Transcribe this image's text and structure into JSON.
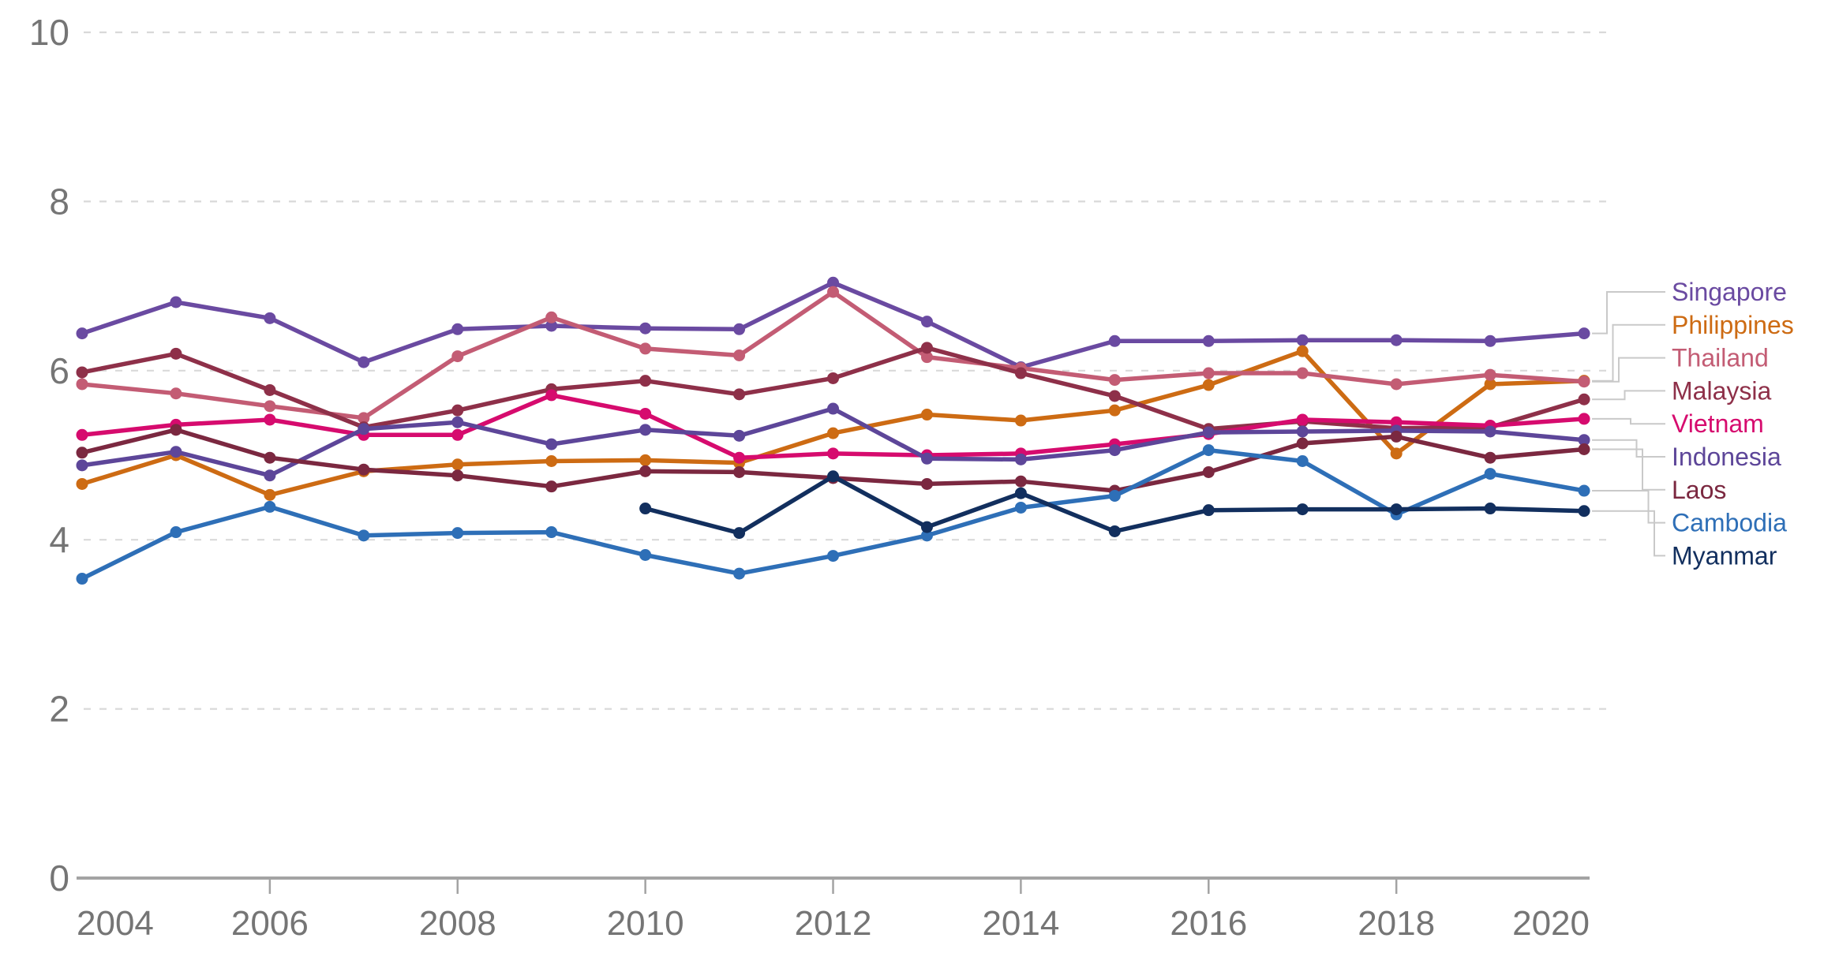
{
  "chart_data": {
    "type": "line",
    "title": "",
    "x": [
      2004,
      2005,
      2006,
      2007,
      2008,
      2009,
      2010,
      2011,
      2012,
      2013,
      2014,
      2015,
      2016,
      2017,
      2018,
      2019,
      2020
    ],
    "x_tick_labels": [
      "2004",
      "2006",
      "2008",
      "2010",
      "2012",
      "2014",
      "2016",
      "2018",
      "2020"
    ],
    "y_ticks": [
      0,
      2,
      4,
      6,
      8,
      10
    ],
    "ylim": [
      0,
      10
    ],
    "xlabel": "",
    "ylabel": "",
    "grid": "horizontal-dashed",
    "legend_position": "right-direct-labels",
    "series": [
      {
        "name": "Singapore",
        "color": "#6a4aa1",
        "values": [
          6.44,
          6.81,
          6.62,
          6.1,
          6.49,
          6.53,
          6.5,
          6.49,
          7.04,
          6.58,
          6.04,
          6.35,
          6.35,
          6.36,
          6.36,
          6.35,
          6.44
        ]
      },
      {
        "name": "Philippines",
        "color": "#cd6b13",
        "values": [
          4.66,
          5.0,
          4.53,
          4.81,
          4.89,
          4.93,
          4.94,
          4.91,
          5.26,
          5.48,
          5.41,
          5.53,
          5.83,
          6.23,
          5.02,
          5.84,
          5.88
        ]
      },
      {
        "name": "Thailand",
        "color": "#c35c74",
        "values": [
          5.84,
          5.73,
          5.58,
          5.44,
          6.17,
          6.63,
          6.26,
          6.18,
          6.93,
          6.16,
          6.03,
          5.89,
          5.97,
          5.97,
          5.84,
          5.95,
          5.87
        ]
      },
      {
        "name": "Malaysia",
        "color": "#8e3049",
        "values": [
          5.98,
          6.2,
          5.77,
          5.33,
          5.53,
          5.78,
          5.88,
          5.72,
          5.91,
          6.27,
          5.97,
          5.7,
          5.31,
          5.4,
          5.32,
          5.33,
          5.66
        ]
      },
      {
        "name": "Vietnam",
        "color": "#d60b6e",
        "values": [
          5.24,
          5.36,
          5.42,
          5.24,
          5.24,
          5.71,
          5.49,
          4.97,
          5.02,
          5.0,
          5.02,
          5.13,
          5.25,
          5.42,
          5.39,
          5.35,
          5.43
        ]
      },
      {
        "name": "Indonesia",
        "color": "#5d4699",
        "values": [
          4.88,
          5.04,
          4.76,
          5.31,
          5.39,
          5.13,
          5.3,
          5.23,
          5.55,
          4.96,
          4.95,
          5.06,
          5.27,
          5.28,
          5.29,
          5.28,
          5.18
        ]
      },
      {
        "name": "Laos",
        "color": "#7b2840",
        "values": [
          5.03,
          5.3,
          4.97,
          4.83,
          4.76,
          4.63,
          4.81,
          4.8,
          4.73,
          4.66,
          4.69,
          4.58,
          4.8,
          5.14,
          5.22,
          4.97,
          5.07
        ]
      },
      {
        "name": "Cambodia",
        "color": "#2e6fb7",
        "values": [
          3.54,
          4.09,
          4.39,
          4.05,
          4.08,
          4.09,
          3.82,
          3.6,
          3.81,
          4.05,
          4.38,
          4.52,
          5.06,
          4.93,
          4.3,
          4.78,
          4.58
        ]
      },
      {
        "name": "Myanmar",
        "color": "#122f5e",
        "values": [
          null,
          null,
          null,
          null,
          null,
          null,
          4.37,
          4.08,
          4.75,
          4.15,
          4.55,
          4.1,
          4.35,
          4.36,
          4.36,
          4.37,
          4.34
        ]
      }
    ],
    "style": {
      "background": "#ffffff",
      "axis_text_color": "#757575",
      "axis_line_color": "#a3a3a3",
      "gridline_color": "#d9d9d9",
      "connector_color": "#c9c9c9"
    }
  }
}
